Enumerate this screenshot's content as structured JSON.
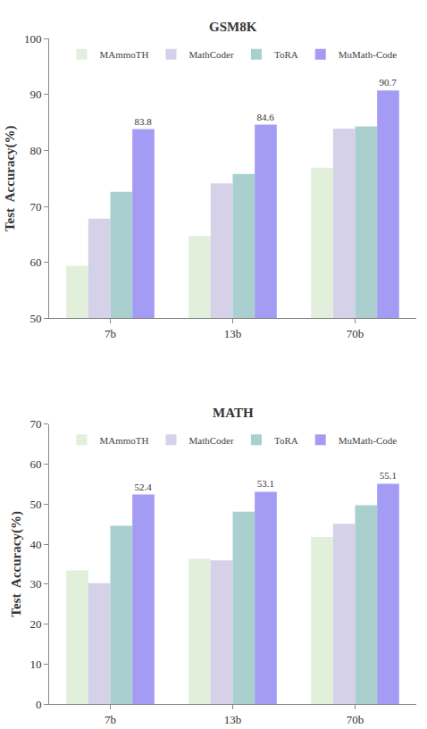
{
  "chart_data": [
    {
      "type": "bar",
      "title": "GSM8K",
      "ylabel": "Test  Accuracy(%)",
      "categories": [
        "7b",
        "13b",
        "70b"
      ],
      "series": [
        {
          "name": "MAmmoTH",
          "color": "#e2efda",
          "values": [
            59.4,
            64.7,
            76.9
          ]
        },
        {
          "name": "MathCoder",
          "color": "#d5d1e9",
          "values": [
            67.8,
            74.1,
            83.9
          ]
        },
        {
          "name": "ToRA",
          "color": "#a9cfcf",
          "values": [
            72.6,
            75.8,
            84.3
          ]
        },
        {
          "name": "MuMath-Code",
          "color": "#a49cf4",
          "values": [
            83.8,
            84.6,
            90.7
          ],
          "data_labels": true
        }
      ],
      "ylim": [
        50,
        100
      ],
      "yticks": [
        50,
        60,
        70,
        80,
        90,
        100
      ],
      "grid": false,
      "legend": "top left"
    },
    {
      "type": "bar",
      "title": "MATH",
      "ylabel": "Test  Accuracy(%)",
      "categories": [
        "7b",
        "13b",
        "70b"
      ],
      "series": [
        {
          "name": "MAmmoTH",
          "color": "#e2efda",
          "values": [
            33.4,
            36.3,
            41.8
          ]
        },
        {
          "name": "MathCoder",
          "color": "#d5d1e9",
          "values": [
            30.2,
            35.9,
            45.1
          ]
        },
        {
          "name": "ToRA",
          "color": "#a9cfcf",
          "values": [
            44.6,
            48.1,
            49.7
          ]
        },
        {
          "name": "MuMath-Code",
          "color": "#a49cf4",
          "values": [
            52.4,
            53.1,
            55.1
          ],
          "data_labels": true
        }
      ],
      "ylim": [
        0,
        70
      ],
      "yticks": [
        0,
        10,
        20,
        30,
        40,
        50,
        60,
        70
      ],
      "grid": false,
      "legend": "top left"
    }
  ]
}
